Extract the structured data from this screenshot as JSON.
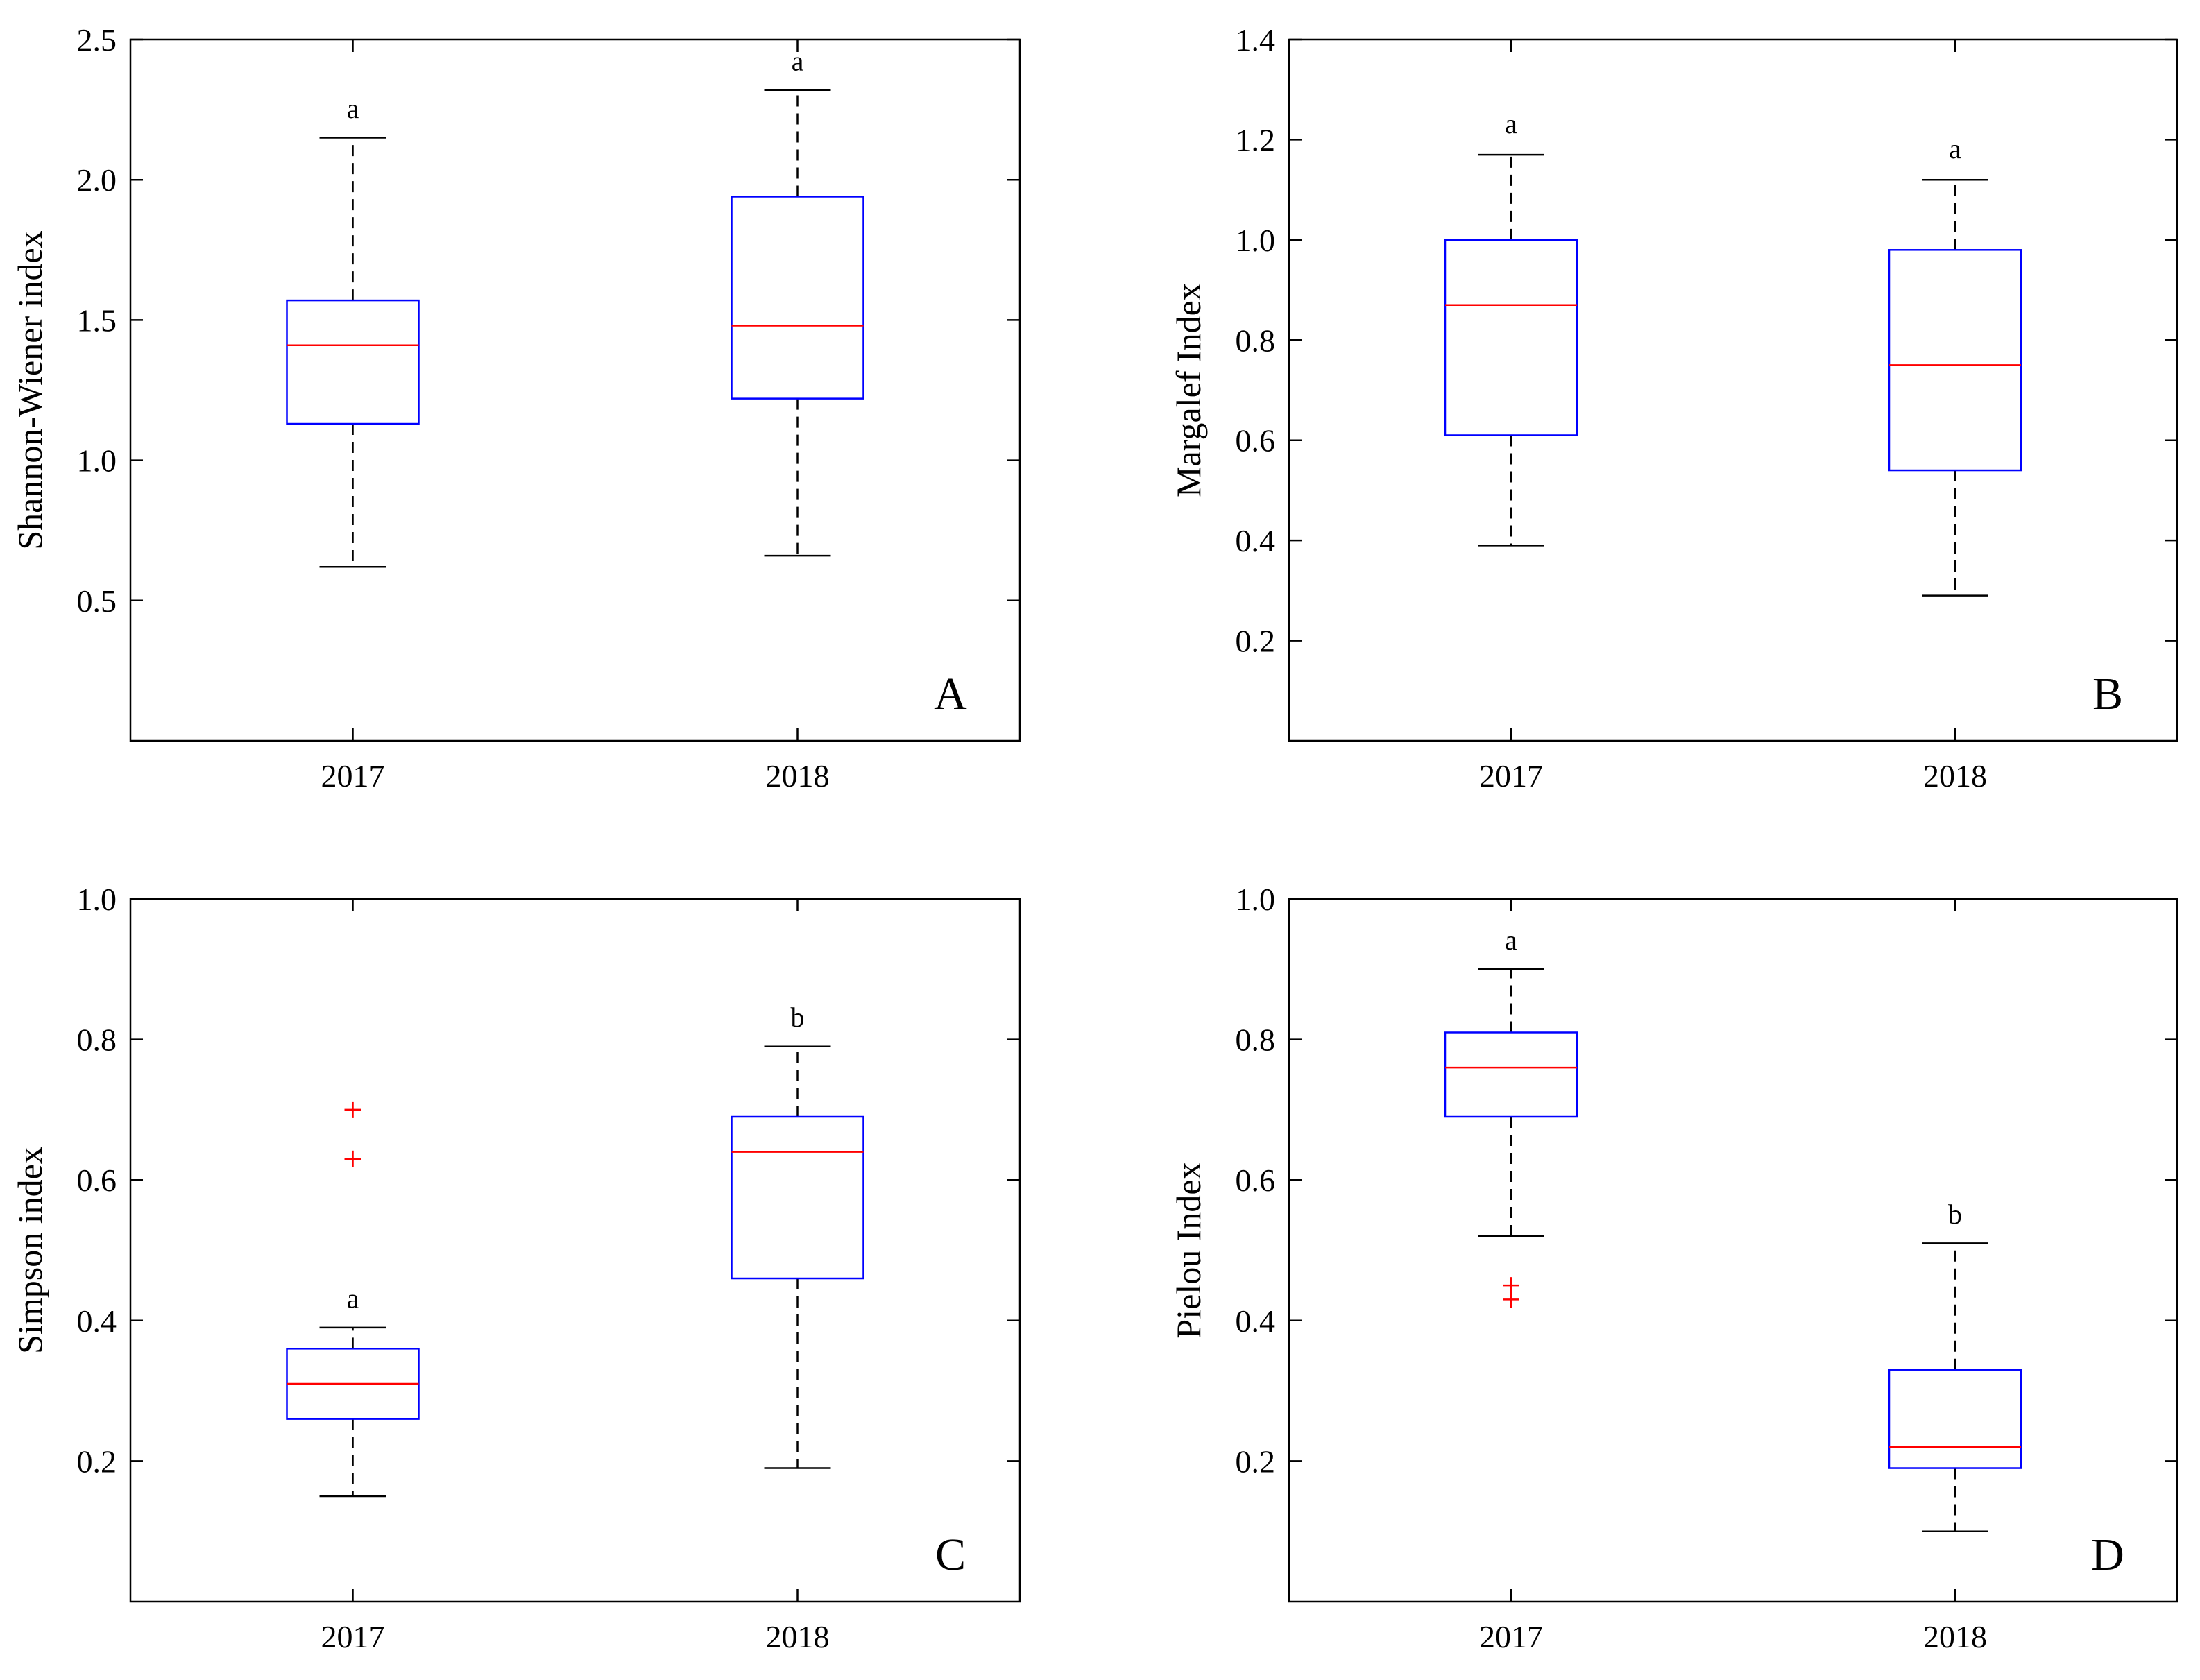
{
  "colors": {
    "box": "#0000ff",
    "median": "#ff0000",
    "whisker": "#000000",
    "outlier": "#ff0000"
  },
  "chart_data": [
    {
      "type": "box",
      "panel": "A",
      "ylabel": "Shannon-Wiener index",
      "ylim": [
        0,
        2.5
      ],
      "yticks": [
        0.5,
        1.0,
        1.5,
        2.0,
        2.5
      ],
      "ytick_labels": [
        "0.5",
        "1.0",
        "1.5",
        "2.0",
        "2.5"
      ],
      "categories": [
        "2017",
        "2018"
      ],
      "boxes": [
        {
          "whisker_low": 0.62,
          "q1": 1.13,
          "median": 1.41,
          "q3": 1.57,
          "whisker_high": 2.15,
          "outliers": [],
          "sig": "a",
          "sig_y": 2.25
        },
        {
          "whisker_low": 0.66,
          "q1": 1.22,
          "median": 1.48,
          "q3": 1.94,
          "whisker_high": 2.32,
          "outliers": [],
          "sig": "a",
          "sig_y": 2.42
        }
      ]
    },
    {
      "type": "box",
      "panel": "B",
      "ylabel": "Margalef Index",
      "ylim": [
        0,
        1.4
      ],
      "yticks": [
        0.2,
        0.4,
        0.6,
        0.8,
        1.0,
        1.2,
        1.4
      ],
      "ytick_labels": [
        "0.2",
        "0.4",
        "0.6",
        "0.8",
        "1.0",
        "1.2",
        "1.4"
      ],
      "categories": [
        "2017",
        "2018"
      ],
      "boxes": [
        {
          "whisker_low": 0.39,
          "q1": 0.61,
          "median": 0.87,
          "q3": 1.0,
          "whisker_high": 1.17,
          "outliers": [],
          "sig": "a",
          "sig_y": 1.23
        },
        {
          "whisker_low": 0.29,
          "q1": 0.54,
          "median": 0.75,
          "q3": 0.98,
          "whisker_high": 1.12,
          "outliers": [],
          "sig": "a",
          "sig_y": 1.18
        }
      ]
    },
    {
      "type": "box",
      "panel": "C",
      "ylabel": "Simpson index",
      "ylim": [
        0,
        1.0
      ],
      "yticks": [
        0.2,
        0.4,
        0.6,
        0.8,
        1.0
      ],
      "ytick_labels": [
        "0.2",
        "0.4",
        "0.6",
        "0.8",
        "1.0"
      ],
      "categories": [
        "2017",
        "2018"
      ],
      "boxes": [
        {
          "whisker_low": 0.15,
          "q1": 0.26,
          "median": 0.31,
          "q3": 0.36,
          "whisker_high": 0.39,
          "outliers": [
            0.7,
            0.63
          ],
          "sig": "a",
          "sig_y": 0.43
        },
        {
          "whisker_low": 0.19,
          "q1": 0.46,
          "median": 0.64,
          "q3": 0.69,
          "whisker_high": 0.79,
          "outliers": [],
          "sig": "b",
          "sig_y": 0.83
        }
      ]
    },
    {
      "type": "box",
      "panel": "D",
      "ylabel": "Pielou Index",
      "ylim": [
        0,
        1.0
      ],
      "yticks": [
        0.2,
        0.4,
        0.6,
        0.8,
        1.0
      ],
      "ytick_labels": [
        "0.2",
        "0.4",
        "0.6",
        "0.8",
        "1.0"
      ],
      "categories": [
        "2017",
        "2018"
      ],
      "boxes": [
        {
          "whisker_low": 0.52,
          "q1": 0.69,
          "median": 0.76,
          "q3": 0.81,
          "whisker_high": 0.9,
          "outliers": [
            0.45,
            0.43
          ],
          "sig": "a",
          "sig_y": 0.94
        },
        {
          "whisker_low": 0.1,
          "q1": 0.19,
          "median": 0.22,
          "q3": 0.33,
          "whisker_high": 0.51,
          "outliers": [],
          "sig": "b",
          "sig_y": 0.55
        }
      ]
    }
  ]
}
